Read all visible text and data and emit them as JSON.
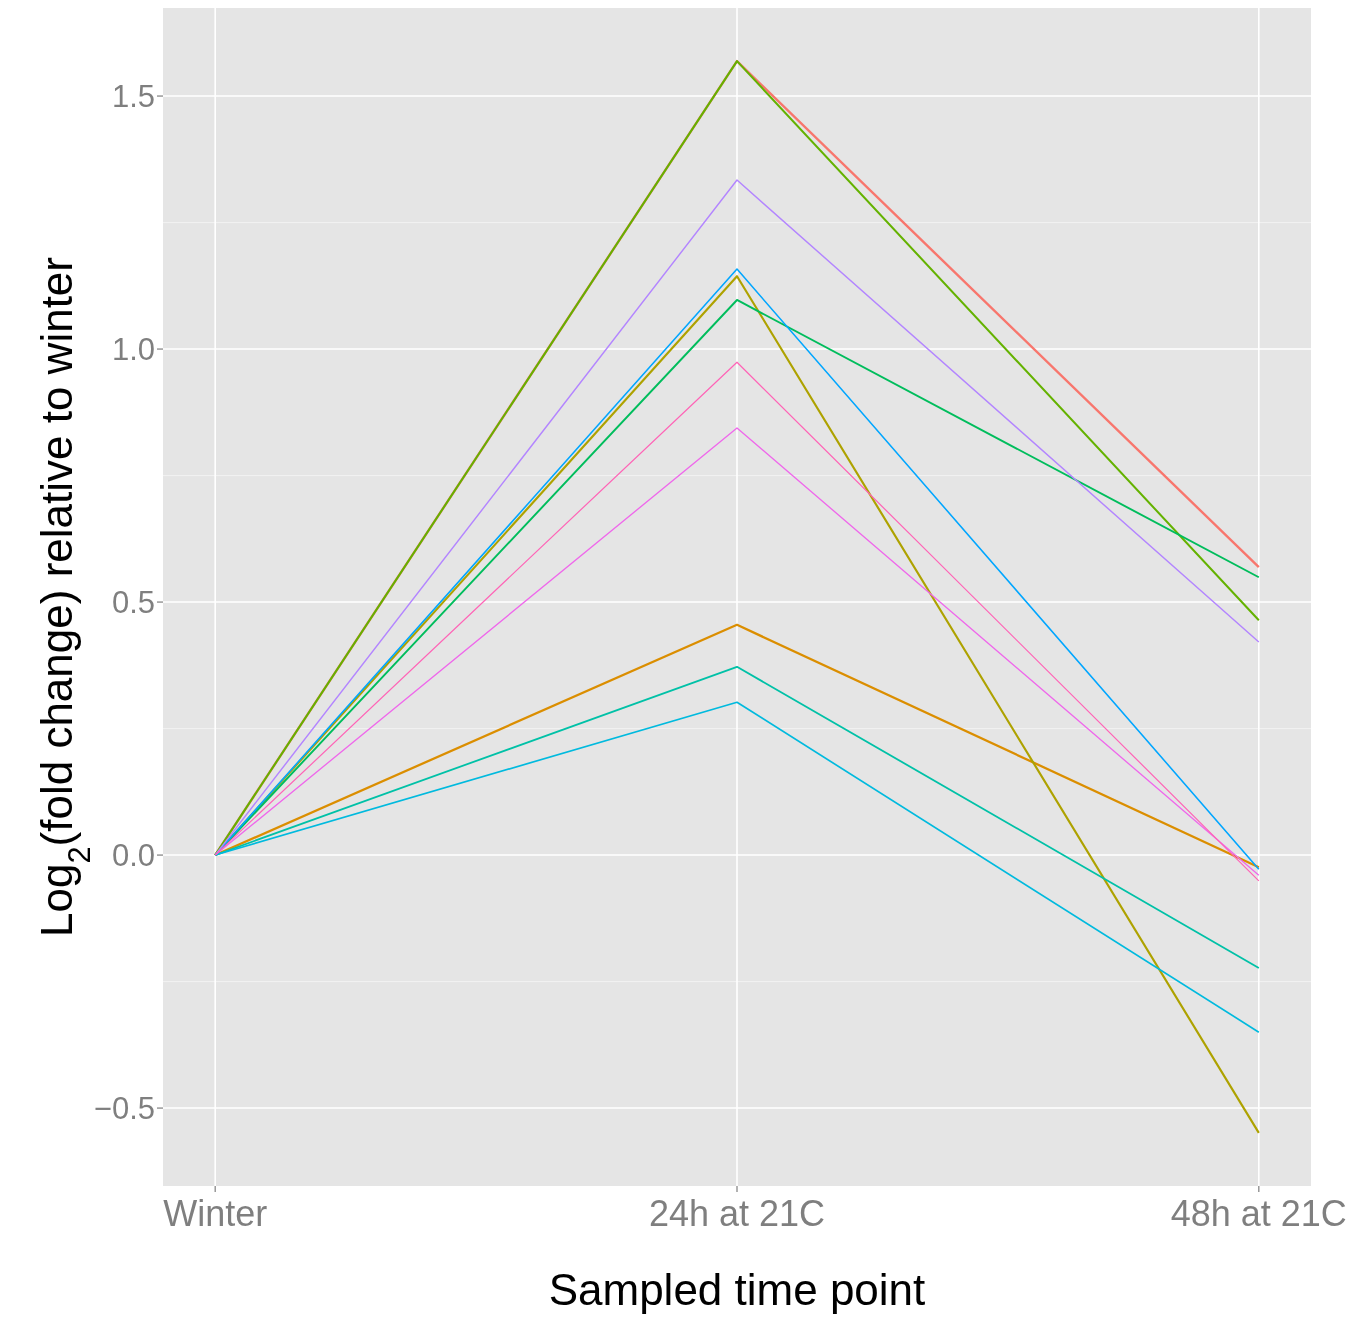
{
  "chart_data": {
    "type": "line",
    "xlabel": "Sampled time point",
    "ylabel": "Log$_{2}$(fold change) relative to winter",
    "categories": [
      "Winter",
      "24h at 21C",
      "48h at 21C"
    ],
    "ylim": [
      -0.654,
      1.674
    ],
    "yticks": [
      {
        "value": -0.5,
        "label": "−0.5"
      },
      {
        "value": 0,
        "label": "0.0"
      },
      0.5,
      {
        "value": 1,
        "label": "1.0"
      },
      1.5
    ],
    "grid": true,
    "marker": "none",
    "line_style": "solid",
    "series": [
      {
        "color": "#F8766D",
        "values": [
          0,
          1.569,
          0.569
        ]
      },
      {
        "color": "#DB8E00",
        "values": [
          0,
          0.455,
          -0.024
        ]
      },
      {
        "color": "#AEA200",
        "values": [
          0,
          1.144,
          -0.549
        ]
      },
      {
        "color": "#64B200",
        "values": [
          0,
          1.569,
          0.464
        ]
      },
      {
        "color": "#00BD5C",
        "values": [
          0,
          1.097,
          0.549
        ]
      },
      {
        "color": "#00C1A7",
        "values": [
          0,
          0.372,
          -0.223
        ]
      },
      {
        "color": "#00BADE",
        "values": [
          0,
          0.302,
          -0.35
        ]
      },
      {
        "color": "#00A6FF",
        "values": [
          0,
          1.158,
          -0.028
        ]
      },
      {
        "color": "#B385FF",
        "values": [
          0,
          1.334,
          0.421
        ]
      },
      {
        "color": "#EF67EB",
        "values": [
          0,
          0.844,
          -0.04
        ]
      },
      {
        "color": "#FF63B6",
        "values": [
          0,
          0.974,
          -0.051
        ]
      }
    ]
  }
}
